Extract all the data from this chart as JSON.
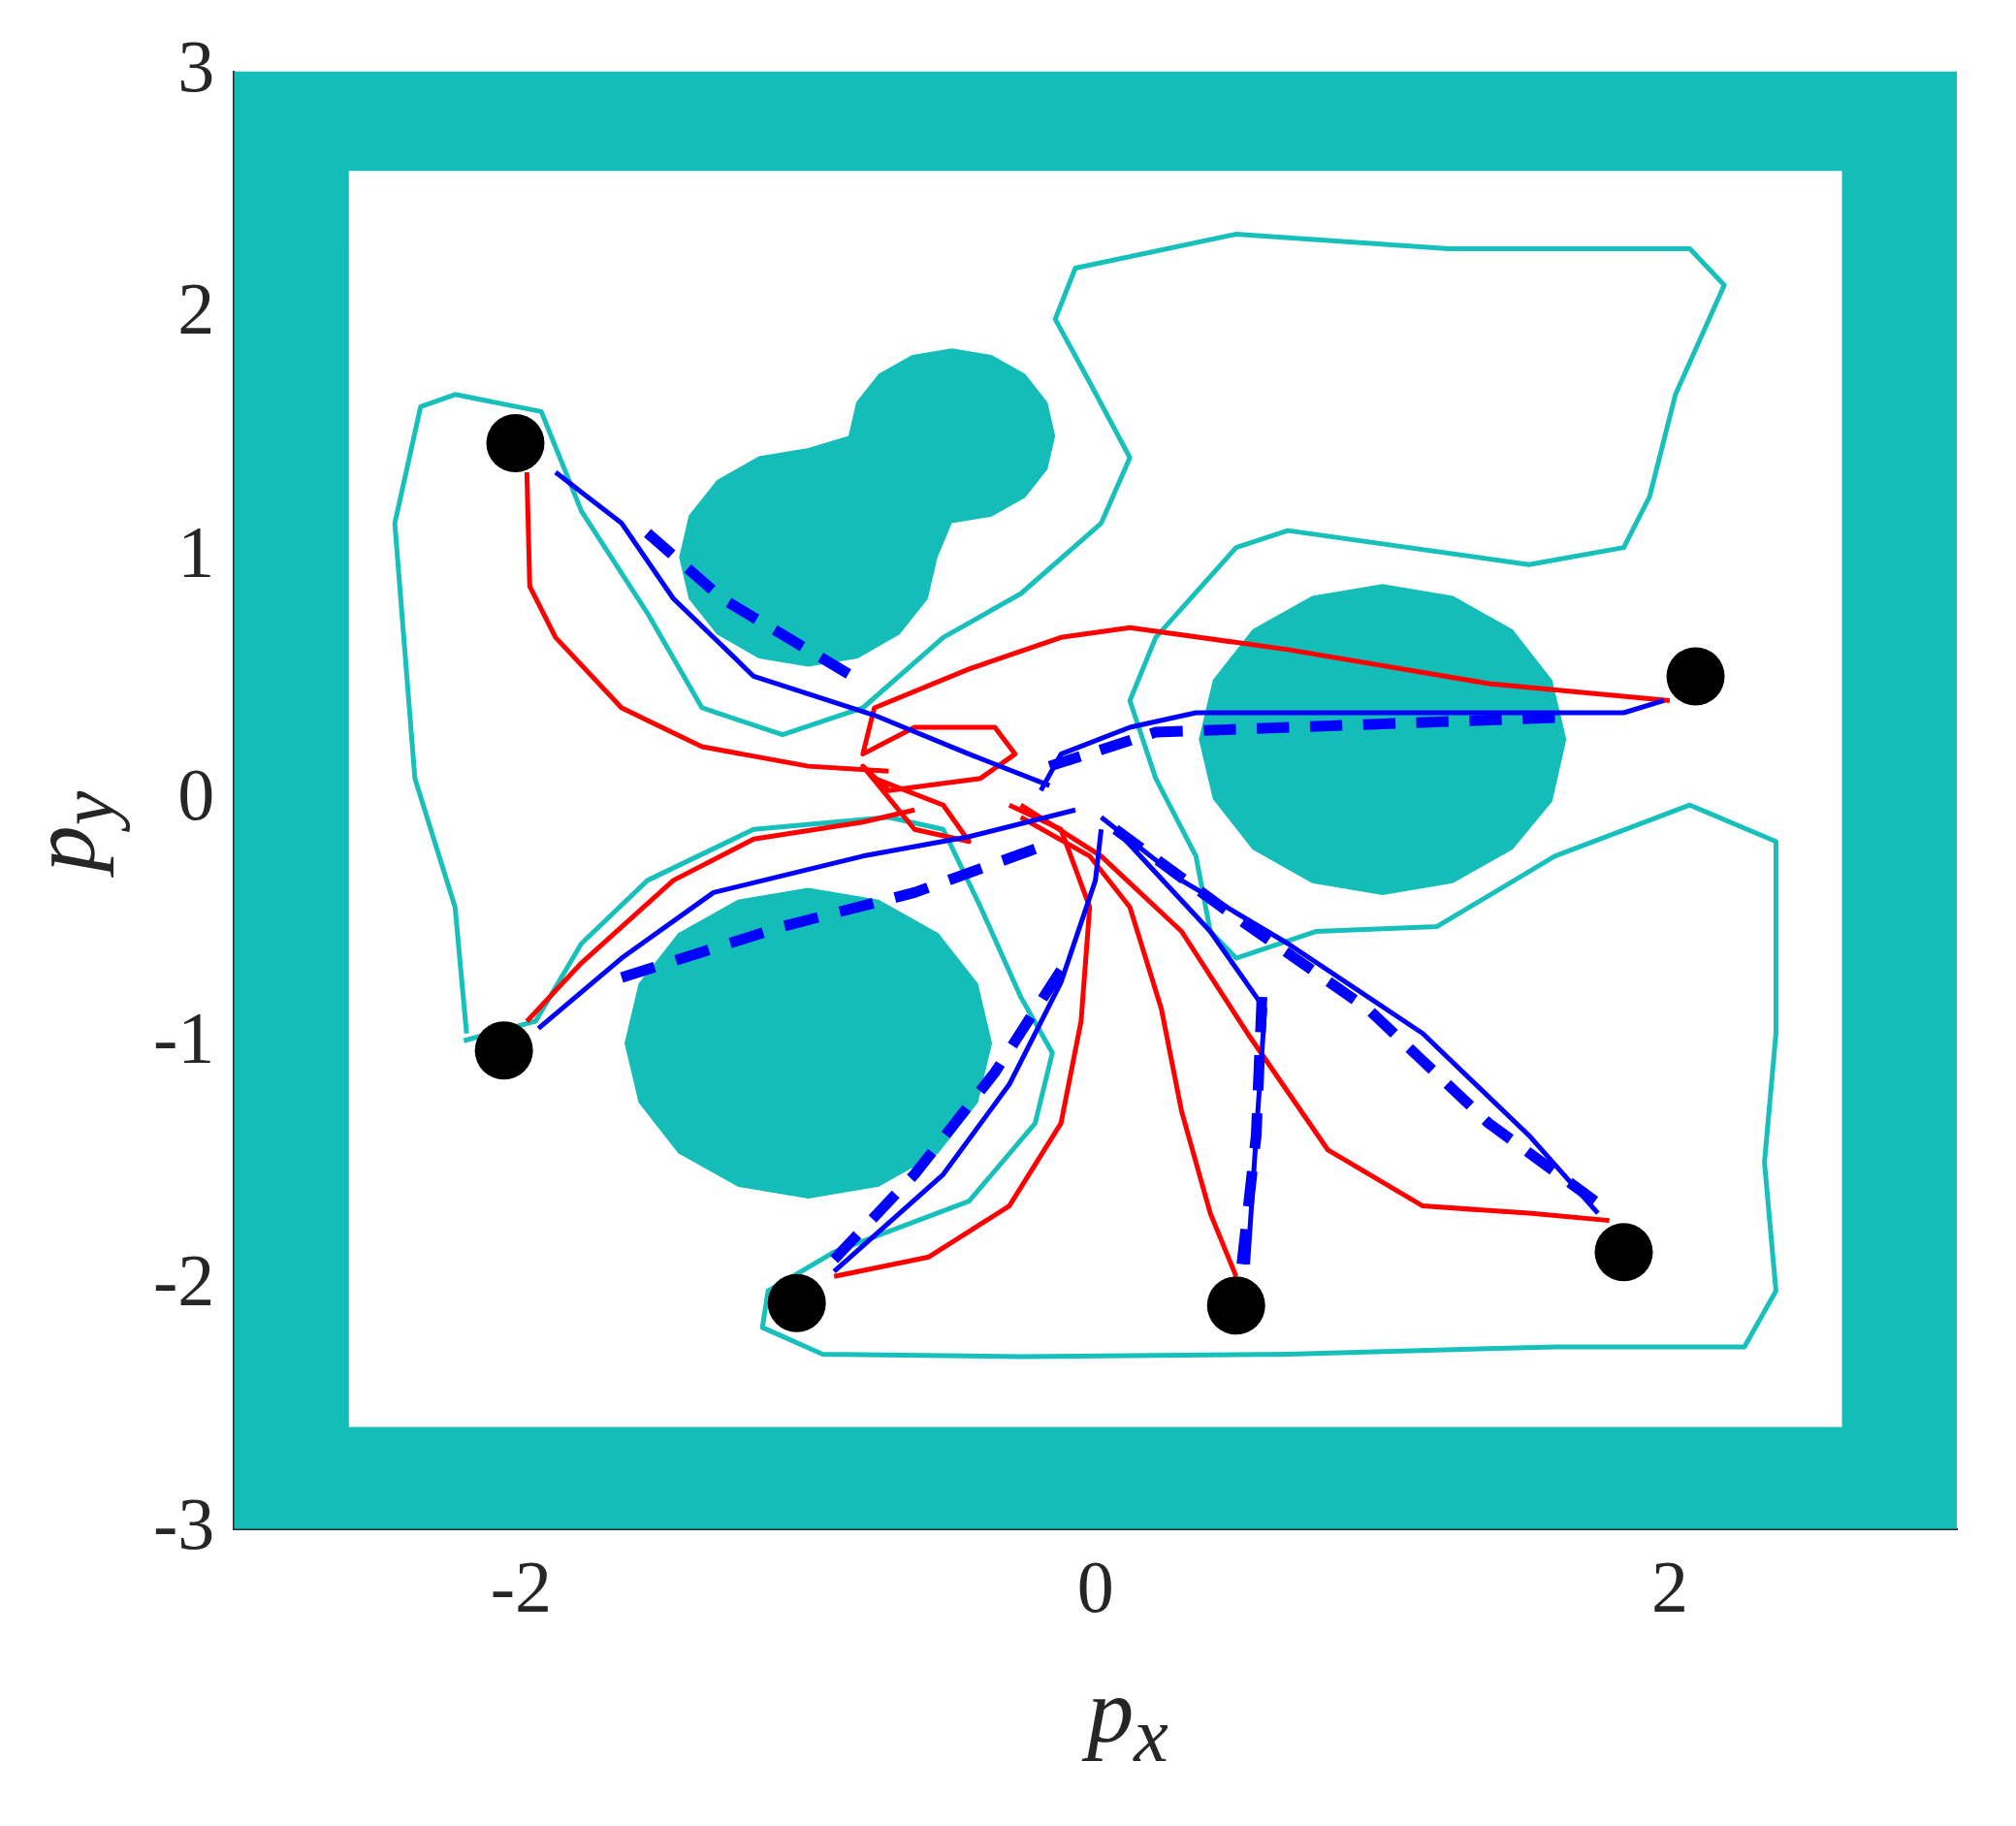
{
  "chart_data": {
    "type": "line",
    "xlabel": "p$_{x}$",
    "ylabel": "p$_{y}$",
    "xlim": [
      -3,
      3
    ],
    "ylim": [
      -3,
      3
    ],
    "xticks": [
      -2,
      0,
      2
    ],
    "yticks": [
      -3,
      -2,
      -1,
      0,
      1,
      2,
      3
    ],
    "grid": false,
    "legend": false,
    "series": [
      {
        "type": "area",
        "color": "#14bdb8",
        "marker": "none",
        "x": [
          -3,
          -3,
          3,
          3,
          -3,
          -2.6,
          2.6,
          2.6,
          -2.6,
          -2.6,
          -3
        ],
        "values": [
          -3,
          3,
          3,
          -3,
          -3,
          -2.58,
          -2.58,
          2.59,
          2.59,
          -2.58,
          -3
        ]
      },
      {
        "type": "area",
        "color": "#14bdb8",
        "marker": "none",
        "x": [
          -0.55,
          -0.5,
          -0.362,
          -0.245,
          -0.167,
          -0.14,
          -0.167,
          -0.245,
          -0.362,
          -0.5,
          -0.638,
          -0.755,
          -0.833,
          -0.86,
          -1,
          -1.172,
          -1.318,
          -1.416,
          -1.45,
          -1.416,
          -1.318,
          -1.172,
          -1,
          -0.828,
          -0.682,
          -0.584,
          -0.55
        ],
        "values": [
          1,
          1.14,
          1.167,
          1.245,
          1.362,
          1.5,
          1.638,
          1.755,
          1.833,
          1.86,
          1.833,
          1.755,
          1.638,
          1.5,
          1.45,
          1.416,
          1.318,
          1.172,
          1,
          0.828,
          0.682,
          0.584,
          0.55,
          0.584,
          0.682,
          0.828,
          1
        ]
      },
      {
        "type": "area",
        "color": "#14bdb8",
        "marker": "none",
        "x": [
          1.64,
          1.591,
          1.453,
          1.245,
          1,
          0.755,
          0.547,
          0.409,
          0.36,
          0.409,
          0.547,
          0.755,
          1,
          1.245,
          1.453,
          1.591,
          1.64
        ],
        "values": [
          0.25,
          0.495,
          0.703,
          0.841,
          0.89,
          0.841,
          0.703,
          0.495,
          0.25,
          0.005,
          -0.203,
          -0.341,
          -0.39,
          -0.341,
          -0.203,
          -0.005,
          0.25
        ]
      },
      {
        "type": "area",
        "color": "#14bdb8",
        "marker": "none",
        "x": [
          -0.36,
          -0.409,
          -0.547,
          -0.755,
          -1,
          -1.245,
          -1.453,
          -1.591,
          -1.64,
          -1.591,
          -1.453,
          -1.245,
          -1,
          -0.755,
          -0.547,
          -0.409,
          -0.36
        ],
        "values": [
          -1,
          -0.755,
          -0.547,
          -0.409,
          -0.36,
          -0.409,
          -0.547,
          -0.755,
          -1,
          -1.245,
          -1.453,
          -1.591,
          -1.64,
          -1.591,
          -1.453,
          -1.245,
          -1
        ]
      },
      {
        "type": "line",
        "color": "#18c0bb",
        "marker": "none",
        "line_style": "solid",
        "x": [
          -2.19,
          -2.23,
          -2.37,
          -2.44,
          -2.35,
          -2.23,
          -1.93,
          -1.79,
          -1.56,
          -1.37,
          -1.09,
          -0.81,
          -0.53,
          -0.26,
          0.02,
          0.12,
          -0.02,
          -0.14,
          -0.07,
          0.49,
          1.23,
          2.07,
          2.19,
          2.02,
          1.93,
          1.84,
          1.51,
          0.67,
          0.49,
          0.21,
          0.12,
          0.21,
          0.35,
          0.4,
          0.49,
          0.77,
          1.19,
          1.6,
          2.07,
          2.37,
          2.37,
          2.33,
          2.37,
          2.26,
          1.6,
          0.67,
          -0.26,
          -0.95,
          -1.16,
          -1.14,
          -0.91,
          -0.44,
          -0.21,
          -0.15,
          -0.26,
          -0.4,
          -0.53,
          -0.72,
          -1.19,
          -1.56,
          -1.79,
          -1.95,
          -2.2
        ],
        "values": [
          -0.96,
          -0.44,
          0.09,
          1.14,
          1.62,
          1.67,
          1.6,
          1.19,
          0.77,
          0.38,
          0.27,
          0.38,
          0.67,
          0.85,
          1.14,
          1.41,
          1.72,
          1.98,
          2.19,
          2.33,
          2.27,
          2.27,
          2.12,
          1.67,
          1.25,
          1.04,
          0.97,
          1.11,
          1.04,
          0.67,
          0.41,
          0.09,
          -0.23,
          -0.54,
          -0.65,
          -0.54,
          -0.52,
          -0.23,
          -0.02,
          -0.17,
          -0.96,
          -1.49,
          -2.02,
          -2.25,
          -2.25,
          -2.28,
          -2.29,
          -2.28,
          -2.17,
          -2.02,
          -1.86,
          -1.65,
          -1.33,
          -1.04,
          -0.81,
          -0.44,
          -0.12,
          -0.07,
          -0.12,
          -0.33,
          -0.59,
          -0.91,
          -0.99
        ]
      },
      {
        "type": "line",
        "color": "#ff0000",
        "marker": "none",
        "line_style": "solid",
        "x": [
          -1.98,
          -1.97,
          -1.88,
          -1.65,
          -1.37,
          -1.0,
          -0.72
        ],
        "values": [
          1.35,
          0.88,
          0.67,
          0.38,
          0.22,
          0.14,
          0.12
        ]
      },
      {
        "type": "line",
        "color": "#ff0000",
        "marker": "none",
        "line_style": "solid",
        "x": [
          -1.98,
          -1.79,
          -1.47,
          -1.19,
          -0.81,
          -0.63
        ],
        "values": [
          -0.91,
          -0.67,
          -0.33,
          -0.16,
          -0.09,
          -0.04
        ]
      },
      {
        "type": "line",
        "color": "#ff0000",
        "marker": "none",
        "line_style": "solid",
        "x": [
          -0.91,
          -0.58,
          -0.3,
          -0.12,
          -0.05,
          -0.02,
          -0.12,
          -0.3
        ],
        "values": [
          -1.96,
          -1.88,
          -1.67,
          -1.33,
          -0.91,
          -0.44,
          -0.12,
          -0.02
        ]
      },
      {
        "type": "line",
        "color": "#ff0000",
        "marker": "none",
        "line_style": "solid",
        "x": [
          0.49,
          0.4,
          0.3,
          0.23,
          0.12,
          -0.02,
          -0.26
        ],
        "values": [
          -1.96,
          -1.7,
          -1.28,
          -0.86,
          -0.44,
          -0.23,
          -0.07
        ]
      },
      {
        "type": "line",
        "color": "#ff0000",
        "marker": "none",
        "line_style": "solid",
        "x": [
          1.79,
          1.51,
          1.14,
          0.81,
          0.53,
          0.3,
          0.02,
          -0.26
        ],
        "values": [
          -1.73,
          -1.7,
          -1.67,
          -1.44,
          -0.96,
          -0.54,
          -0.23,
          -0.02
        ]
      },
      {
        "type": "line",
        "color": "#ff0000",
        "marker": "none",
        "line_style": "solid",
        "x": [
          2.0,
          1.37,
          0.67,
          0.12,
          -0.12,
          -0.44,
          -0.77,
          -0.81,
          -0.63,
          -0.35,
          -0.28,
          -0.4,
          -0.72,
          -0.81,
          -0.63,
          -0.44,
          -0.53,
          -0.77
        ],
        "values": [
          0.41,
          0.48,
          0.62,
          0.71,
          0.67,
          0.54,
          0.38,
          0.19,
          0.3,
          0.3,
          0.19,
          0.09,
          0.04,
          0.14,
          -0.12,
          -0.17,
          -0.02,
          0.09
        ]
      },
      {
        "type": "line",
        "color": "#0000ff",
        "marker": "none",
        "line_style": "solid",
        "x": [
          -1.88,
          -1.65,
          -1.47,
          -1.19,
          -0.77,
          -0.44,
          -0.16
        ],
        "values": [
          1.35,
          1.14,
          0.83,
          0.51,
          0.35,
          0.19,
          0.06
        ]
      },
      {
        "type": "line",
        "color": "#0000ff",
        "marker": "none",
        "line_style": "solid",
        "x": [
          -1.94,
          -1.65,
          -1.33,
          -0.81,
          -0.44,
          -0.07
        ],
        "values": [
          -0.94,
          -0.65,
          -0.38,
          -0.23,
          -0.15,
          -0.04
        ]
      },
      {
        "type": "line",
        "color": "#0000ff",
        "marker": "none",
        "line_style": "solid",
        "x": [
          -0.91,
          -0.53,
          -0.3,
          -0.12,
          0,
          0.02
        ],
        "values": [
          -1.94,
          -1.54,
          -1.17,
          -0.75,
          -0.33,
          -0.12
        ]
      },
      {
        "type": "line",
        "color": "#0000ff",
        "marker": "none",
        "line_style": "solid",
        "x": [
          0.53,
          0.56,
          0.59,
          0.4,
          0.07
        ],
        "values": [
          -1.91,
          -1.38,
          -0.86,
          -0.54,
          -0.12
        ]
      },
      {
        "type": "line",
        "color": "#0000ff",
        "marker": "none",
        "line_style": "solid",
        "x": [
          1.75,
          1.51,
          1.14,
          0.67,
          0.3,
          0.02
        ],
        "values": [
          -1.7,
          -1.38,
          -0.96,
          -0.59,
          -0.33,
          -0.07
        ]
      },
      {
        "type": "line",
        "color": "#0000ff",
        "marker": "none",
        "line_style": "solid",
        "x": [
          1.98,
          1.84,
          0.35,
          0.12,
          -0.12,
          -0.19
        ],
        "values": [
          0.41,
          0.36,
          0.36,
          0.3,
          0.19,
          0.04
        ]
      },
      {
        "type": "line",
        "color": "#0000ff",
        "marker": "none",
        "line_style": "dashed",
        "x": [
          -1.56,
          -1.3,
          -0.86
        ],
        "values": [
          1.1,
          0.83,
          0.52
        ]
      },
      {
        "type": "line",
        "color": "#0000ff",
        "marker": "none",
        "line_style": "dashed",
        "x": [
          -1.65,
          -1.09,
          -0.63,
          -0.21
        ],
        "values": [
          -0.73,
          -0.52,
          -0.38,
          -0.2
        ]
      },
      {
        "type": "line",
        "color": "#0000ff",
        "marker": "none",
        "line_style": "dashed",
        "x": [
          -0.91,
          -0.63,
          -0.35,
          -0.12
        ],
        "values": [
          -1.89,
          -1.54,
          -1.12,
          -0.7
        ]
      },
      {
        "type": "line",
        "color": "#0000ff",
        "marker": "none",
        "line_style": "dashed",
        "x": [
          0.51,
          0.56,
          0.58
        ],
        "values": [
          -1.91,
          -1.38,
          -0.81
        ]
      },
      {
        "type": "line",
        "color": "#0000ff",
        "marker": "none",
        "line_style": "dashed",
        "x": [
          1.74,
          1.37,
          0.95,
          0.44,
          0.07
        ],
        "values": [
          -1.65,
          -1.33,
          -0.86,
          -0.44,
          -0.12
        ]
      },
      {
        "type": "line",
        "color": "#0000ff",
        "marker": "none",
        "line_style": "dashed",
        "x": [
          1.6,
          0.91,
          0.21,
          -0.16
        ],
        "values": [
          0.34,
          0.31,
          0.28,
          0.14
        ]
      },
      {
        "type": "scatter",
        "color": "#000000",
        "marker": "circle",
        "x": [
          -2.02,
          -2.06,
          -1.04,
          0.49,
          1.84,
          2.09
        ],
        "values": [
          1.47,
          -1.03,
          -2.07,
          -2.08,
          -1.86,
          0.51
        ]
      }
    ]
  }
}
